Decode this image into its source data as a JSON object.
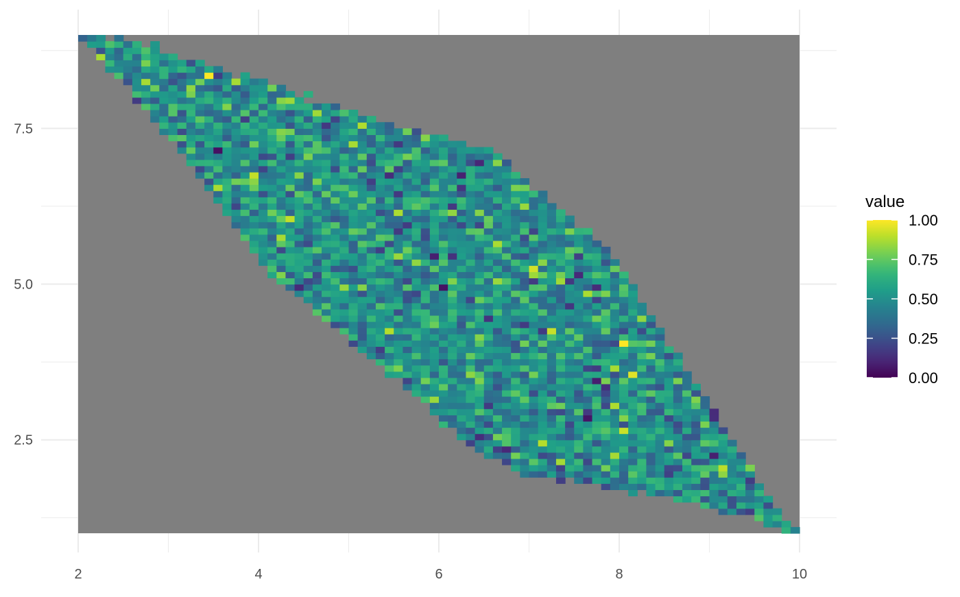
{
  "chart_data": {
    "type": "heatmap",
    "title": "",
    "xlabel": "",
    "ylabel": "",
    "xlim": [
      1.85,
      10.4
    ],
    "ylim": [
      0.85,
      9.25
    ],
    "x_ticks": [
      2,
      4,
      6,
      8,
      10
    ],
    "x_tick_labels": [
      "2",
      "4",
      "6",
      "8",
      "10"
    ],
    "y_ticks": [
      2.5,
      5.0,
      7.5
    ],
    "y_tick_labels": [
      "2.5",
      "5.0",
      "7.5"
    ],
    "grid": true,
    "background_rect": {
      "x": [
        2,
        10
      ],
      "y": [
        1,
        9
      ],
      "fill": "#7f7f7f"
    },
    "tile_grid": {
      "x_start": 2.0,
      "y_start": 1.0,
      "dx": 0.1,
      "dy": 0.1,
      "nx": 80,
      "ny": 80
    },
    "region": {
      "description_points": [
        [
          2,
          9
        ],
        [
          8,
          7
        ],
        [
          10,
          1
        ],
        [
          4,
          2
        ]
      ],
      "top_edge_ys": [
        9.0,
        8.9,
        8.85,
        8.65,
        8.4,
        8.3,
        8.05,
        7.9,
        7.7,
        7.55,
        7.35,
        7.25,
        6.9,
        6.4,
        5.9,
        5.3,
        4.4,
        3.5,
        2.6,
        1.7,
        1.0
      ],
      "bottom_edge_ys": [
        9.0,
        8.4,
        7.7,
        7.0,
        6.2,
        5.4,
        4.8,
        4.35,
        3.9,
        3.4,
        2.8,
        2.35,
        2.05,
        1.85,
        1.8,
        1.7,
        1.6,
        1.5,
        1.35,
        1.2,
        1.0
      ],
      "edge_x_step": 0.4
    },
    "value_range": [
      0,
      1
    ],
    "value_mean": 0.5,
    "value_sd": 0.15,
    "seed": 20240,
    "legend": {
      "title": "value",
      "placement": "right",
      "labels": [
        "1.00",
        "0.75",
        "0.50",
        "0.25",
        "0.00"
      ],
      "breaks": [
        1.0,
        0.75,
        0.5,
        0.25,
        0.0
      ]
    },
    "colormap": "viridis",
    "colors": [
      "#440154",
      "#482878",
      "#3e4989",
      "#31688e",
      "#26828e",
      "#1f9e89",
      "#35b779",
      "#6ece58",
      "#b5de2b",
      "#fde725"
    ],
    "grid_color": "#ebebeb",
    "tick_label_color": "#4d4d4d",
    "legend_text_color": "#000000"
  }
}
